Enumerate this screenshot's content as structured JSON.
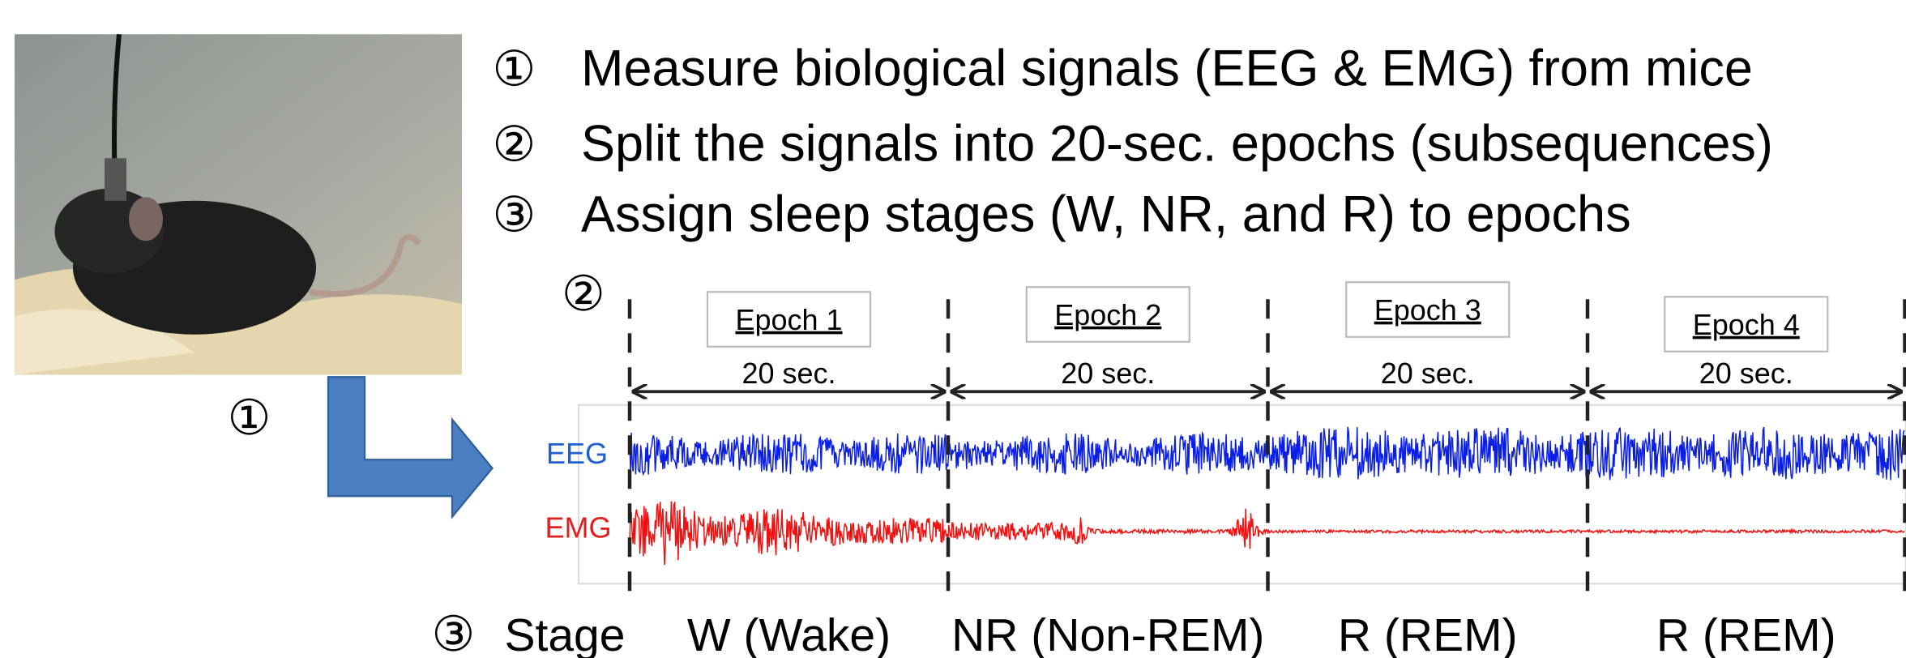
{
  "steps": [
    {
      "number": "①",
      "text": "Measure biological signals (EEG & EMG) from mice"
    },
    {
      "number": "②",
      "text": "Split the signals into 20-sec. epochs (subsequences)"
    },
    {
      "number": "③",
      "text": "Assign sleep stages (W, NR, and R) to epochs"
    }
  ],
  "photo_label": "①",
  "diagram": {
    "label": "②",
    "epochs": [
      {
        "name": "Epoch 1",
        "duration": "20 sec."
      },
      {
        "name": "Epoch 2",
        "duration": "20 sec."
      },
      {
        "name": "Epoch 3",
        "duration": "20 sec."
      },
      {
        "name": "Epoch 4",
        "duration": "20 sec."
      }
    ],
    "signals": [
      "EEG",
      "EMG"
    ],
    "stage_marker": "③",
    "stage_label": "Stage",
    "stages": [
      "W (Wake)",
      "NR (Non-REM)",
      "R (REM)",
      "R (REM)"
    ]
  }
}
